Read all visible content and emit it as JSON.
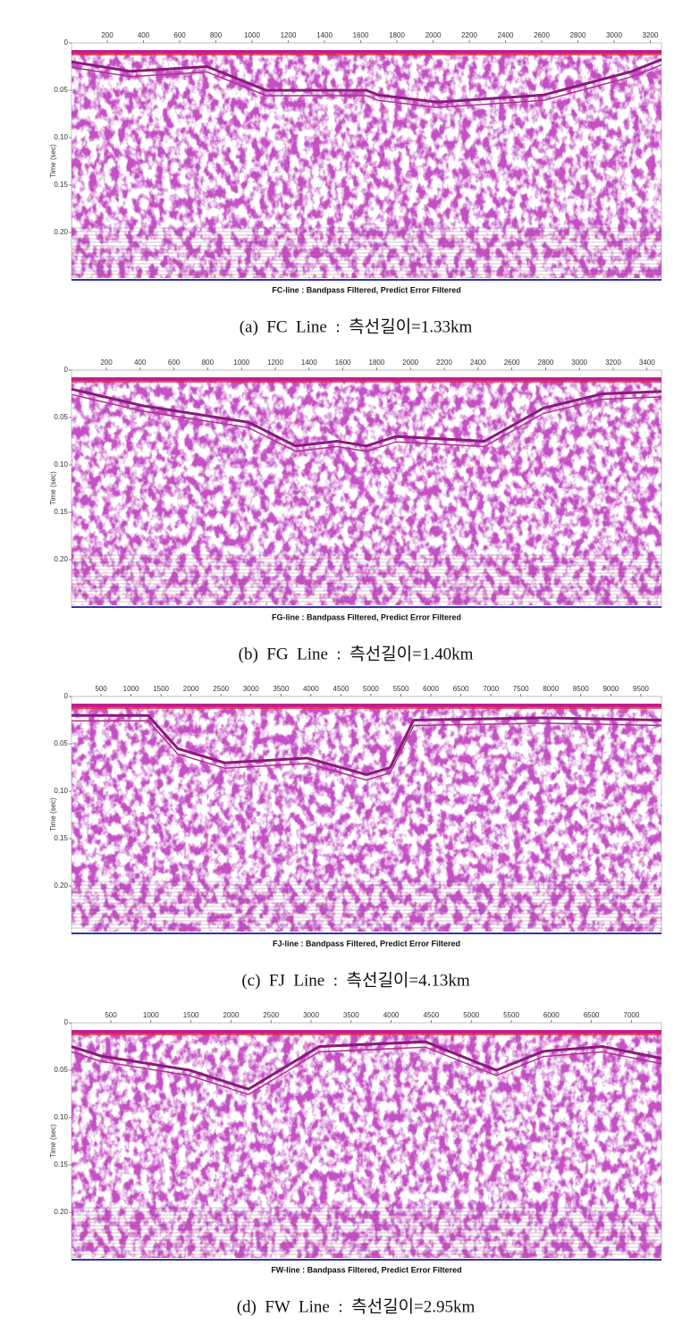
{
  "figures": [
    {
      "x_ticks": [
        "200",
        "400",
        "600",
        "800",
        "1000",
        "1200",
        "1400",
        "1600",
        "1800",
        "2000",
        "2200",
        "2400",
        "2600",
        "2800",
        "3000",
        "3200"
      ],
      "y_ticks": [
        "0",
        "0.05",
        "0.10",
        "0.15",
        "0.20"
      ],
      "y_label": "Time (sec)",
      "title": "FC-line : Bandpass Filtered, Predict Error Filtered",
      "caption": "(a)  FC  Line  :  측선길이=1.33km"
    },
    {
      "x_ticks": [
        "200",
        "400",
        "600",
        "800",
        "1000",
        "1200",
        "1400",
        "1600",
        "1800",
        "2000",
        "2200",
        "2400",
        "2600",
        "2800",
        "3000",
        "3200",
        "3400"
      ],
      "y_ticks": [
        "0",
        "0.05",
        "0.10",
        "0.15",
        "0.20"
      ],
      "y_label": "Time (sec)",
      "title": "FG-line : Bandpass Filtered, Predict Error Filtered",
      "caption": "(b)  FG  Line  :  측선길이=1.40km"
    },
    {
      "x_ticks": [
        "500",
        "1000",
        "1500",
        "2000",
        "2500",
        "3000",
        "3500",
        "4000",
        "4500",
        "5000",
        "5500",
        "6000",
        "6500",
        "7000",
        "7500",
        "8000",
        "8500",
        "9000",
        "9500"
      ],
      "y_ticks": [
        "0",
        "0.05",
        "0.10",
        "0.15",
        "0.20"
      ],
      "y_label": "Time (sec)",
      "title": "FJ-line : Bandpass Filtered, Predict Error Filtered",
      "caption": "(c)  FJ  Line  :  측선길이=4.13km"
    },
    {
      "x_ticks": [
        "500",
        "1000",
        "1500",
        "2000",
        "2500",
        "3000",
        "3500",
        "4000",
        "4500",
        "5000",
        "5500",
        "6000",
        "6500",
        "7000"
      ],
      "y_ticks": [
        "0",
        "0.05",
        "0.10",
        "0.15",
        "0.20"
      ],
      "y_label": "Time (sec)",
      "title": "FW-line : Bandpass Filtered, Predict Error Filtered",
      "caption": "(d)  FW  Line  :  측선길이=2.95km"
    }
  ]
}
